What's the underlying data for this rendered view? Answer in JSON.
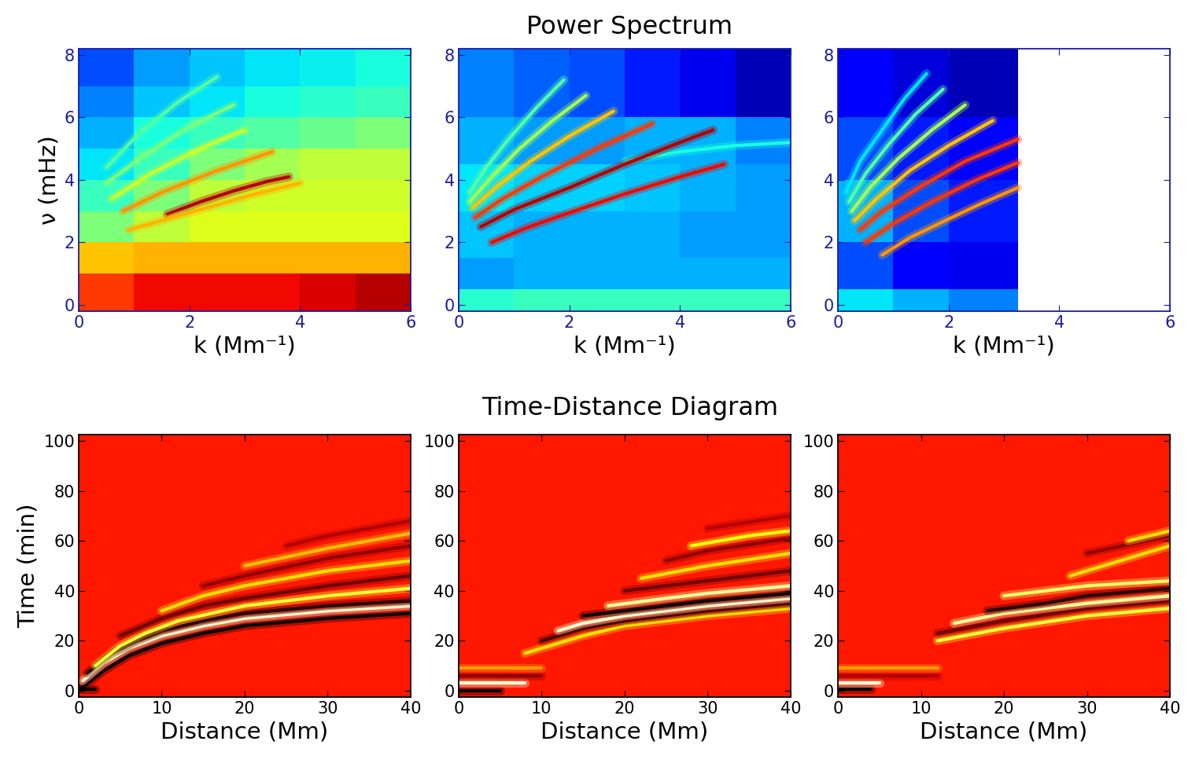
{
  "row_titles": [
    "Power Spectrum",
    "Time-Distance Diagram"
  ],
  "chart_data": [
    {
      "type": "heatmap",
      "color": "jet",
      "clim": [
        0,
        1
      ],
      "xlabel": "k (Mm⁻¹)",
      "ylabel": "ν (mHz)",
      "xlim": [
        0,
        6
      ],
      "ylim": [
        -0.2,
        8.2
      ],
      "xticks": [
        0,
        2,
        4,
        6
      ],
      "yticks": [
        0,
        2,
        4,
        6,
        8
      ],
      "x_edges": [
        0,
        1,
        2,
        3,
        4,
        5,
        6
      ],
      "y_edges": [
        -0.2,
        1,
        2,
        3,
        4,
        5,
        6,
        7,
        8.2
      ],
      "cells": [
        [
          0.85,
          0.9,
          0.9,
          0.9,
          0.92,
          0.95
        ],
        [
          0.7,
          0.72,
          0.72,
          0.72,
          0.72,
          0.72
        ],
        [
          0.5,
          0.58,
          0.62,
          0.62,
          0.62,
          0.62
        ],
        [
          0.42,
          0.5,
          0.58,
          0.6,
          0.6,
          0.6
        ],
        [
          0.35,
          0.42,
          0.5,
          0.55,
          0.58,
          0.58
        ],
        [
          0.3,
          0.38,
          0.42,
          0.45,
          0.48,
          0.5
        ],
        [
          0.25,
          0.32,
          0.35,
          0.38,
          0.4,
          0.42
        ],
        [
          0.2,
          0.28,
          0.32,
          0.35,
          0.36,
          0.38
        ]
      ],
      "ridges": [
        {
          "x": [
            1.6,
            2.2,
            2.8,
            3.4,
            3.8
          ],
          "y": [
            2.9,
            3.3,
            3.65,
            3.95,
            4.1
          ],
          "value": 0.95
        },
        {
          "x": [
            0.8,
            1.5,
            2.5,
            3.5
          ],
          "y": [
            3.0,
            3.6,
            4.3,
            4.9
          ],
          "value": 0.75
        },
        {
          "x": [
            0.9,
            1.6,
            2.4,
            3.2,
            4.0
          ],
          "y": [
            2.4,
            2.75,
            3.15,
            3.55,
            3.9
          ],
          "value": 0.72
        },
        {
          "x": [
            0.6,
            1.3,
            2.2,
            3.0
          ],
          "y": [
            3.4,
            4.2,
            5.0,
            5.6
          ],
          "value": 0.6
        },
        {
          "x": [
            0.5,
            1.2,
            2.0,
            2.8
          ],
          "y": [
            3.9,
            4.8,
            5.7,
            6.4
          ],
          "value": 0.5
        },
        {
          "x": [
            0.5,
            1.1,
            1.8,
            2.5
          ],
          "y": [
            4.4,
            5.5,
            6.5,
            7.3
          ],
          "value": 0.45
        }
      ]
    },
    {
      "type": "heatmap",
      "color": "jet",
      "clim": [
        0,
        1
      ],
      "xlabel": "k (Mm⁻¹)",
      "xlim": [
        0,
        6
      ],
      "ylim": [
        -0.2,
        8.2
      ],
      "xticks": [
        0,
        2,
        4,
        6
      ],
      "yticks": [
        0,
        2,
        4,
        6,
        8
      ],
      "x_edges": [
        0,
        1,
        2,
        3,
        4,
        5,
        6
      ],
      "y_edges": [
        -0.2,
        0.5,
        1.5,
        3,
        4.5,
        6,
        8.2
      ],
      "cells": [
        [
          0.4,
          0.42,
          0.42,
          0.42,
          0.42,
          0.42
        ],
        [
          0.28,
          0.3,
          0.3,
          0.3,
          0.3,
          0.3
        ],
        [
          0.32,
          0.3,
          0.3,
          0.3,
          0.28,
          0.28
        ],
        [
          0.35,
          0.33,
          0.33,
          0.32,
          0.3,
          0.28
        ],
        [
          0.3,
          0.28,
          0.28,
          0.3,
          0.3,
          0.25
        ],
        [
          0.25,
          0.22,
          0.2,
          0.15,
          0.1,
          0.05
        ]
      ],
      "ridges": [
        {
          "x": [
            3,
            4,
            5,
            6
          ],
          "y": [
            4.6,
            4.9,
            5.1,
            5.2
          ],
          "value": 0.38
        },
        {
          "x": [
            0.6,
            1.2,
            2,
            3,
            4,
            4.8
          ],
          "y": [
            2.0,
            2.45,
            2.95,
            3.55,
            4.1,
            4.5
          ],
          "value": 0.9
        },
        {
          "x": [
            0.4,
            1,
            2,
            3,
            4,
            4.6
          ],
          "y": [
            2.5,
            3.05,
            3.75,
            4.5,
            5.2,
            5.6
          ],
          "value": 0.95
        },
        {
          "x": [
            0.3,
            0.8,
            1.5,
            2.5,
            3.5
          ],
          "y": [
            2.8,
            3.4,
            4.1,
            5.0,
            5.8
          ],
          "value": 0.85
        },
        {
          "x": [
            0.25,
            0.7,
            1.3,
            2,
            2.8
          ],
          "y": [
            3.1,
            3.8,
            4.6,
            5.4,
            6.2
          ],
          "value": 0.7
        },
        {
          "x": [
            0.2,
            0.6,
            1.1,
            1.7,
            2.3
          ],
          "y": [
            3.3,
            4.1,
            5.0,
            5.9,
            6.7
          ],
          "value": 0.55
        },
        {
          "x": [
            0.2,
            0.5,
            0.9,
            1.4,
            1.9
          ],
          "y": [
            3.6,
            4.4,
            5.3,
            6.3,
            7.2
          ],
          "value": 0.45
        }
      ]
    },
    {
      "type": "heatmap",
      "color": "jet",
      "clim": [
        0,
        1
      ],
      "xlabel": "k (Mm⁻¹)",
      "xlim": [
        0,
        6
      ],
      "ylim": [
        -0.2,
        8.2
      ],
      "xticks": [
        0,
        2,
        4,
        6
      ],
      "yticks": [
        0,
        2,
        4,
        6,
        8
      ],
      "x_edges": [
        0,
        1,
        2,
        3,
        3.25,
        6
      ],
      "y_edges": [
        -0.2,
        0.5,
        2,
        4,
        6,
        8.2
      ],
      "cells": [
        [
          0.35,
          0.3,
          0.25,
          0.25,
          null
        ],
        [
          0.2,
          0.12,
          0.1,
          0.1,
          null
        ],
        [
          0.3,
          0.2,
          0.15,
          0.15,
          null
        ],
        [
          0.2,
          0.15,
          0.12,
          0.12,
          null
        ],
        [
          0.12,
          0.08,
          0.05,
          0.05,
          null
        ]
      ],
      "ridges": [
        {
          "x": [
            0.8,
            1.3,
            2,
            2.6,
            3.25
          ],
          "y": [
            1.6,
            2.15,
            2.75,
            3.25,
            3.75
          ],
          "value": 0.75
        },
        {
          "x": [
            0.5,
            1,
            1.7,
            2.5,
            3.25
          ],
          "y": [
            2.0,
            2.6,
            3.3,
            4.0,
            4.55
          ],
          "value": 0.85
        },
        {
          "x": [
            0.4,
            0.8,
            1.5,
            2.3,
            3.25
          ],
          "y": [
            2.4,
            3.0,
            3.8,
            4.6,
            5.3
          ],
          "value": 0.85
        },
        {
          "x": [
            0.3,
            0.7,
            1.3,
            2,
            2.8
          ],
          "y": [
            2.7,
            3.4,
            4.3,
            5.1,
            5.9
          ],
          "value": 0.7
        },
        {
          "x": [
            0.25,
            0.6,
            1.1,
            1.7,
            2.3
          ],
          "y": [
            3.0,
            3.8,
            4.7,
            5.6,
            6.4
          ],
          "value": 0.55
        },
        {
          "x": [
            0.2,
            0.5,
            0.9,
            1.4,
            1.9
          ],
          "y": [
            3.3,
            4.2,
            5.1,
            6.1,
            6.9
          ],
          "value": 0.45
        },
        {
          "x": [
            0.15,
            0.4,
            0.8,
            1.2,
            1.6
          ],
          "y": [
            3.6,
            4.6,
            5.6,
            6.6,
            7.4
          ],
          "value": 0.35
        }
      ]
    },
    {
      "type": "heatmap",
      "color": "hot",
      "clim": [
        0,
        1
      ],
      "xlabel": "Distance (Mm)",
      "ylabel": "Time (min)",
      "xlim": [
        0,
        40
      ],
      "ylim": [
        -2.5,
        102.5
      ],
      "xticks": [
        0,
        10,
        20,
        30,
        40
      ],
      "yticks": [
        0,
        20,
        40,
        60,
        80,
        100
      ],
      "x_edges": [
        0,
        40
      ],
      "y_edges": [
        -2.5,
        102.5
      ],
      "cells": [
        [
          0.4
        ]
      ],
      "ridges": [
        {
          "x": [
            0,
            2
          ],
          "y": [
            0.5,
            0.5
          ],
          "value": 0.0
        },
        {
          "x": [
            0.3,
            3,
            6,
            10,
            15,
            20,
            30,
            40
          ],
          "y": [
            1,
            8,
            14,
            19,
            23,
            26,
            29,
            31
          ],
          "value": 0.0
        },
        {
          "x": [
            0.5,
            3,
            6,
            10,
            15,
            20,
            30,
            40
          ],
          "y": [
            4,
            11,
            17,
            22,
            26,
            29,
            32,
            34
          ],
          "value": 0.95
        },
        {
          "x": [
            1,
            4,
            7,
            10,
            15,
            20,
            30,
            40
          ],
          "y": [
            7,
            15,
            20,
            24,
            28,
            31,
            34,
            36
          ],
          "value": 0.05
        },
        {
          "x": [
            2,
            5,
            8,
            12,
            20,
            30,
            40
          ],
          "y": [
            10,
            18,
            23,
            28,
            34,
            38,
            41
          ],
          "value": 0.8
        },
        {
          "x": [
            5,
            10,
            15,
            20,
            30,
            40
          ],
          "y": [
            22,
            29,
            34,
            37,
            42,
            46
          ],
          "value": 0.15
        },
        {
          "x": [
            10,
            15,
            20,
            30,
            40
          ],
          "y": [
            32,
            38,
            42,
            48,
            52
          ],
          "value": 0.7
        },
        {
          "x": [
            15,
            20,
            30,
            40
          ],
          "y": [
            42,
            46,
            53,
            58
          ],
          "value": 0.2
        },
        {
          "x": [
            20,
            30,
            40
          ],
          "y": [
            50,
            57,
            63
          ],
          "value": 0.65
        },
        {
          "x": [
            25,
            30,
            40
          ],
          "y": [
            58,
            62,
            68
          ],
          "value": 0.25
        }
      ]
    },
    {
      "type": "heatmap",
      "color": "hot",
      "clim": [
        0,
        1
      ],
      "xlabel": "Distance (Mm)",
      "xlim": [
        0,
        40
      ],
      "ylim": [
        -2.5,
        102.5
      ],
      "xticks": [
        0,
        10,
        20,
        30,
        40
      ],
      "yticks": [
        0,
        20,
        40,
        60,
        80,
        100
      ],
      "x_edges": [
        0,
        40
      ],
      "y_edges": [
        -2.5,
        102.5
      ],
      "cells": [
        [
          0.4
        ]
      ],
      "ridges": [
        {
          "x": [
            0,
            5
          ],
          "y": [
            0,
            0
          ],
          "value": 0.0
        },
        {
          "x": [
            0,
            8
          ],
          "y": [
            3,
            3
          ],
          "value": 0.95
        },
        {
          "x": [
            0,
            10
          ],
          "y": [
            6,
            6
          ],
          "value": 0.2
        },
        {
          "x": [
            0,
            10
          ],
          "y": [
            9,
            9
          ],
          "value": 0.6
        },
        {
          "x": [
            8,
            15,
            20,
            30,
            40
          ],
          "y": [
            15,
            22,
            26,
            30,
            33
          ],
          "value": 0.7
        },
        {
          "x": [
            10,
            15,
            20,
            30,
            40
          ],
          "y": [
            20,
            25,
            28,
            32,
            35
          ],
          "value": 0.1
        },
        {
          "x": [
            12,
            15,
            20,
            30,
            40
          ],
          "y": [
            24,
            27,
            30,
            34,
            37
          ],
          "value": 0.95
        },
        {
          "x": [
            15,
            20,
            30,
            40
          ],
          "y": [
            30,
            32,
            36,
            39
          ],
          "value": 0.0
        },
        {
          "x": [
            18,
            25,
            30,
            40
          ],
          "y": [
            34,
            37,
            39,
            42
          ],
          "value": 0.9
        },
        {
          "x": [
            20,
            30,
            40
          ],
          "y": [
            40,
            44,
            48
          ],
          "value": 0.15
        },
        {
          "x": [
            22,
            30,
            40
          ],
          "y": [
            45,
            50,
            55
          ],
          "value": 0.7
        },
        {
          "x": [
            25,
            30,
            40
          ],
          "y": [
            52,
            56,
            61
          ],
          "value": 0.2
        },
        {
          "x": [
            28,
            35,
            40
          ],
          "y": [
            58,
            62,
            64
          ],
          "value": 0.75
        },
        {
          "x": [
            30,
            40
          ],
          "y": [
            65,
            70
          ],
          "value": 0.25
        }
      ]
    },
    {
      "type": "heatmap",
      "color": "hot",
      "clim": [
        0,
        1
      ],
      "xlabel": "Distance (Mm)",
      "xlim": [
        0,
        40
      ],
      "ylim": [
        -2.5,
        102.5
      ],
      "xticks": [
        0,
        10,
        20,
        30,
        40
      ],
      "yticks": [
        0,
        20,
        40,
        60,
        80,
        100
      ],
      "x_edges": [
        0,
        40
      ],
      "y_edges": [
        -2.5,
        102.5
      ],
      "cells": [
        [
          0.4
        ]
      ],
      "ridges": [
        {
          "x": [
            0,
            4
          ],
          "y": [
            0.5,
            0.5
          ],
          "value": 0.0
        },
        {
          "x": [
            0,
            5
          ],
          "y": [
            3,
            3
          ],
          "value": 0.95
        },
        {
          "x": [
            0,
            12
          ],
          "y": [
            6,
            6
          ],
          "value": 0.25
        },
        {
          "x": [
            0,
            12
          ],
          "y": [
            9,
            9
          ],
          "value": 0.6
        },
        {
          "x": [
            12,
            20,
            30,
            40
          ],
          "y": [
            20,
            25,
            30,
            33
          ],
          "value": 0.8
        },
        {
          "x": [
            12,
            20,
            30,
            40
          ],
          "y": [
            23,
            28,
            33,
            36
          ],
          "value": 0.15
        },
        {
          "x": [
            14,
            20,
            30,
            40
          ],
          "y": [
            27,
            31,
            35,
            38
          ],
          "value": 0.9
        },
        {
          "x": [
            18,
            25,
            30,
            40
          ],
          "y": [
            32,
            35,
            38,
            41
          ],
          "value": 0.05
        },
        {
          "x": [
            20,
            30,
            40
          ],
          "y": [
            38,
            42,
            44
          ],
          "value": 0.85
        },
        {
          "x": [
            28,
            35,
            40
          ],
          "y": [
            46,
            53,
            58
          ],
          "value": 0.7
        },
        {
          "x": [
            30,
            40
          ],
          "y": [
            55,
            62
          ],
          "value": 0.2
        },
        {
          "x": [
            35,
            40
          ],
          "y": [
            60,
            64
          ],
          "value": 0.7
        }
      ]
    }
  ]
}
